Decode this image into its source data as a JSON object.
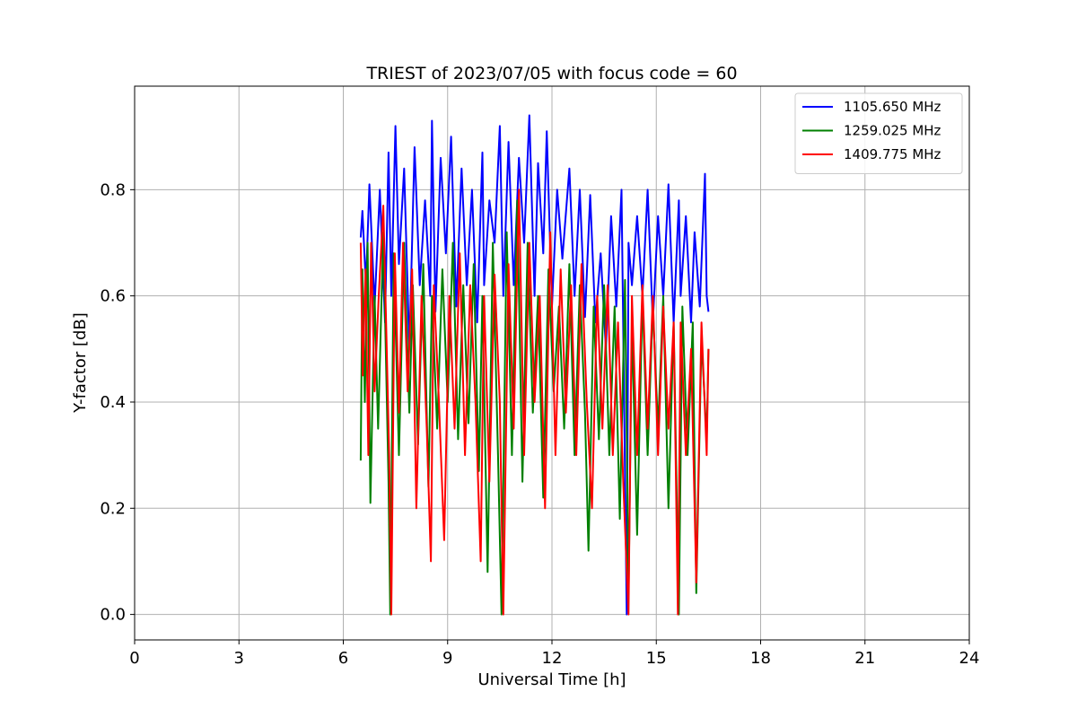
{
  "chart_data": {
    "type": "line",
    "title": "TRIEST of 2023/07/05 with focus code = 60",
    "xlabel": "Universal Time [h]",
    "ylabel": "Y-factor [dB]",
    "xlim": [
      0,
      24
    ],
    "ylim": [
      -0.048,
      0.995
    ],
    "xticks": [
      0,
      3,
      6,
      9,
      12,
      15,
      18,
      21,
      24
    ],
    "yticks": [
      0.0,
      0.2,
      0.4,
      0.6,
      0.8
    ],
    "ytick_labels": [
      "0.0",
      "0.2",
      "0.4",
      "0.6",
      "0.8"
    ],
    "grid": true,
    "legend_position": "top-right",
    "series": [
      {
        "name": "1105.650 MHz",
        "color": "#0000ff",
        "x": [
          6.5,
          6.55,
          6.65,
          6.75,
          6.9,
          7.05,
          7.2,
          7.3,
          7.38,
          7.5,
          7.6,
          7.75,
          7.9,
          8.05,
          8.2,
          8.35,
          8.5,
          8.55,
          8.65,
          8.8,
          8.95,
          9.1,
          9.25,
          9.4,
          9.55,
          9.7,
          9.85,
          10.0,
          10.05,
          10.2,
          10.35,
          10.5,
          10.6,
          10.75,
          10.9,
          11.05,
          11.2,
          11.35,
          11.5,
          11.6,
          11.75,
          11.85,
          12.0,
          12.15,
          12.3,
          12.5,
          12.65,
          12.8,
          12.95,
          13.1,
          13.25,
          13.4,
          13.55,
          13.7,
          13.85,
          14.0,
          14.15,
          14.2,
          14.3,
          14.45,
          14.6,
          14.75,
          14.9,
          15.05,
          15.2,
          15.35,
          15.5,
          15.65,
          15.7,
          15.85,
          16.0,
          16.1,
          16.25,
          16.4,
          16.45,
          16.5
        ],
        "values": [
          0.71,
          0.76,
          0.62,
          0.81,
          0.58,
          0.8,
          0.55,
          0.87,
          0.6,
          0.92,
          0.66,
          0.84,
          0.5,
          0.88,
          0.62,
          0.78,
          0.6,
          0.93,
          0.57,
          0.86,
          0.68,
          0.9,
          0.58,
          0.84,
          0.62,
          0.8,
          0.55,
          0.87,
          0.62,
          0.78,
          0.7,
          0.92,
          0.6,
          0.89,
          0.62,
          0.86,
          0.7,
          0.94,
          0.6,
          0.85,
          0.68,
          0.91,
          0.58,
          0.8,
          0.67,
          0.84,
          0.6,
          0.8,
          0.56,
          0.79,
          0.55,
          0.68,
          0.5,
          0.75,
          0.58,
          0.8,
          0.0,
          0.7,
          0.62,
          0.75,
          0.6,
          0.8,
          0.55,
          0.75,
          0.6,
          0.81,
          0.55,
          0.78,
          0.6,
          0.75,
          0.55,
          0.72,
          0.58,
          0.83,
          0.6,
          0.57
        ]
      },
      {
        "name": "1259.025 MHz",
        "color": "#008000",
        "x": [
          6.5,
          6.55,
          6.62,
          6.7,
          6.78,
          6.9,
          7.0,
          7.15,
          7.3,
          7.35,
          7.45,
          7.6,
          7.75,
          7.9,
          8.0,
          8.15,
          8.3,
          8.45,
          8.55,
          8.7,
          8.85,
          9.0,
          9.15,
          9.3,
          9.45,
          9.6,
          9.75,
          9.9,
          10.0,
          10.15,
          10.3,
          10.45,
          10.55,
          10.7,
          10.85,
          11.0,
          11.15,
          11.3,
          11.45,
          11.6,
          11.75,
          11.9,
          12.05,
          12.2,
          12.35,
          12.5,
          12.65,
          12.8,
          12.95,
          13.05,
          13.2,
          13.35,
          13.5,
          13.65,
          13.8,
          13.95,
          14.1,
          14.2,
          14.3,
          14.45,
          14.6,
          14.75,
          14.9,
          15.05,
          15.2,
          15.35,
          15.5,
          15.65,
          15.75,
          15.9,
          16.05,
          16.15,
          16.3,
          16.45,
          16.5
        ],
        "values": [
          0.29,
          0.65,
          0.4,
          0.7,
          0.21,
          0.6,
          0.35,
          0.72,
          0.25,
          0.0,
          0.68,
          0.3,
          0.7,
          0.38,
          0.62,
          0.32,
          0.66,
          0.24,
          0.6,
          0.35,
          0.65,
          0.4,
          0.7,
          0.33,
          0.62,
          0.36,
          0.66,
          0.27,
          0.6,
          0.08,
          0.7,
          0.3,
          0.0,
          0.72,
          0.3,
          0.78,
          0.25,
          0.7,
          0.38,
          0.6,
          0.22,
          0.65,
          0.42,
          0.58,
          0.35,
          0.66,
          0.3,
          0.62,
          0.38,
          0.12,
          0.58,
          0.33,
          0.62,
          0.3,
          0.58,
          0.18,
          0.63,
          0.03,
          0.55,
          0.15,
          0.6,
          0.3,
          0.58,
          0.35,
          0.6,
          0.2,
          0.55,
          0.0,
          0.58,
          0.3,
          0.55,
          0.04,
          0.52,
          0.33,
          0.5
        ]
      },
      {
        "name": "1409.775 MHz",
        "color": "#ff0000",
        "x": [
          6.5,
          6.56,
          6.64,
          6.72,
          6.8,
          6.9,
          7.02,
          7.15,
          7.25,
          7.32,
          7.38,
          7.48,
          7.6,
          7.72,
          7.85,
          7.98,
          8.1,
          8.25,
          8.4,
          8.52,
          8.6,
          8.75,
          8.9,
          9.05,
          9.2,
          9.35,
          9.5,
          9.65,
          9.8,
          9.95,
          10.05,
          10.2,
          10.35,
          10.5,
          10.6,
          10.75,
          10.9,
          11.05,
          11.2,
          11.35,
          11.5,
          11.65,
          11.8,
          11.95,
          12.1,
          12.25,
          12.4,
          12.55,
          12.7,
          12.85,
          13.0,
          13.15,
          13.3,
          13.45,
          13.6,
          13.75,
          13.9,
          14.05,
          14.2,
          14.3,
          14.45,
          14.6,
          14.75,
          14.9,
          15.05,
          15.2,
          15.35,
          15.5,
          15.62,
          15.7,
          15.85,
          16.0,
          16.15,
          16.3,
          16.45,
          16.5
        ],
        "values": [
          0.7,
          0.45,
          0.65,
          0.3,
          0.7,
          0.42,
          0.6,
          0.77,
          0.5,
          0.3,
          0.0,
          0.68,
          0.38,
          0.7,
          0.42,
          0.65,
          0.2,
          0.6,
          0.35,
          0.1,
          0.62,
          0.4,
          0.14,
          0.6,
          0.35,
          0.68,
          0.3,
          0.62,
          0.4,
          0.1,
          0.6,
          0.25,
          0.64,
          0.4,
          0.0,
          0.66,
          0.35,
          0.8,
          0.3,
          0.7,
          0.4,
          0.6,
          0.2,
          0.72,
          0.3,
          0.65,
          0.38,
          0.62,
          0.3,
          0.66,
          0.4,
          0.2,
          0.6,
          0.35,
          0.62,
          0.3,
          0.55,
          0.25,
          0.0,
          0.6,
          0.3,
          0.62,
          0.35,
          0.6,
          0.3,
          0.58,
          0.35,
          0.55,
          0.0,
          0.55,
          0.3,
          0.5,
          0.06,
          0.55,
          0.3,
          0.5
        ]
      }
    ]
  }
}
